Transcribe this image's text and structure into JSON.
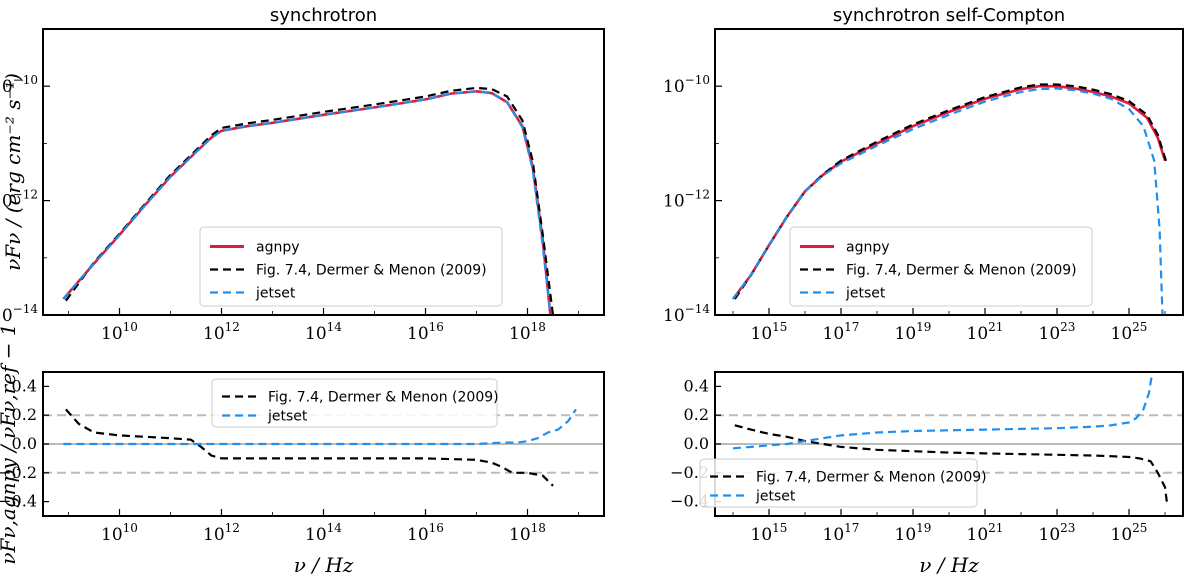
{
  "chart_data": [
    {
      "id": "sync-sed",
      "type": "line",
      "title": "synchrotron",
      "xlabel": "",
      "ylabel": "νFν / (erg cm⁻² s⁻¹)",
      "xscale": "log",
      "yscale": "log",
      "xlim_exp": [
        8.5,
        19.5
      ],
      "ylim_exp": [
        -14,
        -9
      ],
      "xticks_exp": [
        10,
        12,
        14,
        16,
        18
      ],
      "yticks_exp": [
        -10,
        -12,
        -14
      ],
      "legend": {
        "position": "lower-center",
        "entries": [
          "agnpy",
          "Fig. 7.4, Dermer & Menon (2009)",
          "jetset"
        ]
      },
      "series": [
        {
          "name": "agnpy",
          "color": "#e31a3c",
          "style": "solid",
          "x_exp": [
            8.9,
            9.5,
            10,
            10.5,
            11,
            11.5,
            11.8,
            12,
            12.5,
            13,
            14,
            15,
            16,
            16.5,
            17,
            17.3,
            17.6,
            17.9,
            18.1,
            18.3,
            18.45
          ],
          "y_exp": [
            -13.72,
            -13.1,
            -12.6,
            -12.08,
            -11.58,
            -11.15,
            -10.9,
            -10.78,
            -10.7,
            -10.64,
            -10.5,
            -10.37,
            -10.23,
            -10.13,
            -10.09,
            -10.12,
            -10.28,
            -10.7,
            -11.4,
            -12.7,
            -14.0
          ]
        },
        {
          "name": "Fig. 7.4, Dermer & Menon (2009)",
          "color": "#000000",
          "style": "dashed",
          "x_exp": [
            8.95,
            9.5,
            10,
            10.5,
            11,
            11.5,
            11.8,
            12,
            12.5,
            13,
            14,
            15,
            16,
            16.5,
            17,
            17.3,
            17.6,
            17.9,
            18.1,
            18.3,
            18.5
          ],
          "y_exp": [
            -13.75,
            -13.08,
            -12.58,
            -12.06,
            -11.55,
            -11.12,
            -10.86,
            -10.73,
            -10.65,
            -10.59,
            -10.45,
            -10.32,
            -10.18,
            -10.08,
            -10.03,
            -10.05,
            -10.18,
            -10.6,
            -11.3,
            -12.6,
            -14.0
          ]
        },
        {
          "name": "jetset",
          "color": "#1f8ff0",
          "style": "dashed",
          "x_exp": [
            8.9,
            9.5,
            10,
            10.5,
            11,
            11.5,
            11.8,
            12,
            12.5,
            13,
            14,
            15,
            16,
            16.5,
            17,
            17.3,
            17.6,
            17.9,
            18.1,
            18.3,
            18.45
          ],
          "y_exp": [
            -13.72,
            -13.1,
            -12.6,
            -12.08,
            -11.58,
            -11.15,
            -10.9,
            -10.78,
            -10.7,
            -10.64,
            -10.5,
            -10.37,
            -10.23,
            -10.13,
            -10.09,
            -10.12,
            -10.28,
            -10.72,
            -11.45,
            -12.8,
            -14.0
          ]
        }
      ]
    },
    {
      "id": "ssc-sed",
      "type": "line",
      "title": "synchrotron self-Compton",
      "xlabel": "",
      "ylabel": "",
      "xscale": "log",
      "yscale": "log",
      "xlim_exp": [
        13.5,
        26.5
      ],
      "ylim_exp": [
        -14,
        -9
      ],
      "xticks_exp": [
        15,
        17,
        19,
        21,
        23,
        25
      ],
      "yticks_exp": [
        -10,
        -12,
        -14
      ],
      "legend": {
        "position": "lower-center",
        "entries": [
          "agnpy",
          "Fig. 7.4, Dermer & Menon (2009)",
          "jetset"
        ]
      },
      "series": [
        {
          "name": "agnpy",
          "color": "#e31a3c",
          "style": "solid",
          "x_exp": [
            14,
            14.5,
            15,
            15.5,
            16,
            16.5,
            17,
            18,
            19,
            20,
            21,
            22,
            22.5,
            23,
            23.5,
            24,
            24.5,
            25,
            25.5,
            25.8,
            26.0
          ],
          "y_exp": [
            -13.72,
            -13.3,
            -12.78,
            -12.28,
            -11.84,
            -11.55,
            -11.32,
            -11.0,
            -10.7,
            -10.45,
            -10.22,
            -10.05,
            -10.0,
            -10.0,
            -10.04,
            -10.1,
            -10.18,
            -10.3,
            -10.55,
            -10.9,
            -11.3
          ]
        },
        {
          "name": "Fig. 7.4, Dermer & Menon (2009)",
          "color": "#000000",
          "style": "dashed",
          "x_exp": [
            14.05,
            14.5,
            15,
            15.5,
            16,
            16.5,
            17,
            18,
            19,
            20,
            21,
            22,
            22.5,
            23,
            23.5,
            24,
            24.5,
            25,
            25.5,
            25.8,
            26.05
          ],
          "y_exp": [
            -13.72,
            -13.3,
            -12.78,
            -12.28,
            -11.84,
            -11.54,
            -11.3,
            -10.97,
            -10.67,
            -10.42,
            -10.19,
            -10.02,
            -9.97,
            -9.97,
            -10.0,
            -10.06,
            -10.14,
            -10.26,
            -10.5,
            -10.85,
            -11.35
          ]
        },
        {
          "name": "jetset",
          "color": "#1f8ff0",
          "style": "dashed",
          "x_exp": [
            14,
            14.5,
            15,
            15.5,
            16,
            16.5,
            17,
            18,
            19,
            20,
            21,
            22,
            22.5,
            23,
            23.5,
            24,
            24.5,
            25,
            25.4,
            25.7,
            25.85,
            25.93
          ],
          "y_exp": [
            -13.72,
            -13.3,
            -12.78,
            -12.28,
            -11.84,
            -11.56,
            -11.35,
            -11.04,
            -10.75,
            -10.5,
            -10.27,
            -10.1,
            -10.05,
            -10.04,
            -10.07,
            -10.13,
            -10.22,
            -10.4,
            -10.7,
            -11.3,
            -12.5,
            -14.0
          ]
        }
      ]
    },
    {
      "id": "sync-dev",
      "type": "line",
      "title": "",
      "xlabel": "ν / Hz",
      "ylabel": "νFν,agnpy / νFν,ref − 1",
      "xscale": "log",
      "yscale": "linear",
      "xlim_exp": [
        8.5,
        19.5
      ],
      "ylim": [
        -0.5,
        0.5
      ],
      "xticks_exp": [
        10,
        12,
        14,
        16,
        18
      ],
      "yticks": [
        0.4,
        0.2,
        0.0,
        -0.2,
        -0.4
      ],
      "reference_lines": [
        0.2,
        0.0,
        -0.2
      ],
      "legend": {
        "position": "top-center",
        "entries": [
          "Fig. 7.4, Dermer & Menon (2009)",
          "jetset"
        ]
      },
      "series": [
        {
          "name": "Fig. 7.4, Dermer & Menon (2009)",
          "color": "#000000",
          "style": "dashed",
          "x": [
            8.95,
            9.2,
            9.5,
            10,
            10.5,
            11,
            11.4,
            11.6,
            11.8,
            12,
            13,
            14,
            15,
            16,
            17,
            17.3,
            17.5,
            17.7,
            18,
            18.3,
            18.5
          ],
          "y": [
            0.24,
            0.14,
            0.08,
            0.06,
            0.05,
            0.04,
            0.03,
            -0.02,
            -0.08,
            -0.1,
            -0.1,
            -0.1,
            -0.1,
            -0.1,
            -0.11,
            -0.13,
            -0.16,
            -0.2,
            -0.2,
            -0.22,
            -0.29
          ]
        },
        {
          "name": "jetset",
          "color": "#1f8ff0",
          "style": "dashed",
          "x": [
            8.9,
            10,
            12,
            14,
            16,
            17,
            17.5,
            17.8,
            18,
            18.2,
            18.4,
            18.6,
            18.8,
            18.95
          ],
          "y": [
            0.0,
            0.0,
            0.0,
            0.0,
            0.0,
            0.0,
            0.01,
            0.01,
            0.02,
            0.04,
            0.08,
            0.1,
            0.16,
            0.24
          ]
        }
      ]
    },
    {
      "id": "ssc-dev",
      "type": "line",
      "title": "",
      "xlabel": "ν / Hz",
      "ylabel": "",
      "xscale": "log",
      "yscale": "linear",
      "xlim_exp": [
        13.5,
        26.5
      ],
      "ylim": [
        -0.5,
        0.5
      ],
      "xticks_exp": [
        15,
        17,
        19,
        21,
        23,
        25
      ],
      "yticks": [
        0.4,
        0.2,
        0.0,
        -0.2,
        -0.4
      ],
      "reference_lines": [
        0.2,
        0.0,
        -0.2
      ],
      "legend": {
        "position": "lower-left",
        "entries": [
          "Fig. 7.4, Dermer & Menon (2009)",
          "jetset"
        ]
      },
      "series": [
        {
          "name": "Fig. 7.4, Dermer & Menon (2009)",
          "color": "#000000",
          "style": "dashed",
          "x": [
            14.05,
            14.5,
            15,
            15.5,
            16,
            16.5,
            17,
            18,
            19,
            20,
            21,
            22,
            23,
            24,
            24.5,
            25,
            25.3,
            25.6,
            25.8,
            26.0,
            26.05
          ],
          "y": [
            0.13,
            0.1,
            0.07,
            0.05,
            0.02,
            0.0,
            -0.02,
            -0.04,
            -0.05,
            -0.06,
            -0.065,
            -0.07,
            -0.075,
            -0.08,
            -0.085,
            -0.09,
            -0.1,
            -0.12,
            -0.2,
            -0.3,
            -0.4
          ]
        },
        {
          "name": "jetset",
          "color": "#1f8ff0",
          "style": "dashed",
          "x": [
            14,
            14.5,
            15,
            15.5,
            16,
            16.5,
            17,
            18,
            19,
            20,
            21,
            22,
            23,
            24,
            24.5,
            25,
            25.2,
            25.4,
            25.55,
            25.65
          ],
          "y": [
            -0.03,
            -0.02,
            -0.01,
            0.0,
            0.02,
            0.04,
            0.06,
            0.08,
            0.09,
            0.095,
            0.1,
            0.105,
            0.11,
            0.12,
            0.13,
            0.15,
            0.18,
            0.24,
            0.35,
            0.5
          ]
        }
      ]
    }
  ]
}
